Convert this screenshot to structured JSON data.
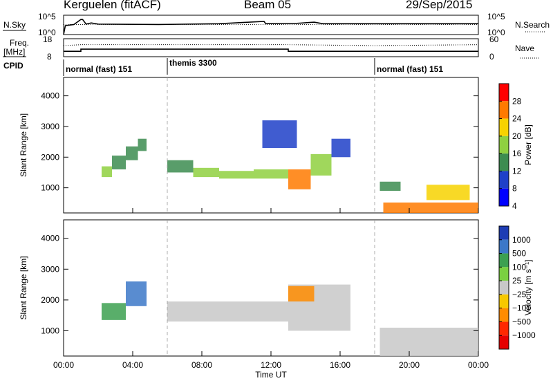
{
  "chart_data": [
    {
      "type": "line",
      "header": {
        "station": "Kerguelen (fitACF)",
        "beam": "Beam 05",
        "date": "29/Sep/2015"
      },
      "left_label": "N.Sky",
      "right_label": "N.Search",
      "yticks_left": [
        "10^5",
        "10^0"
      ],
      "yticks_right": [
        "10^5",
        "10^0"
      ],
      "line_style_right": "dotted",
      "series": [
        {
          "values_x": [
            0,
            0.1,
            0.6,
            1.0,
            1.1,
            1.3,
            1.6,
            2.0,
            5.5,
            9.0,
            11.6,
            11.7,
            12.6,
            13.5,
            14.5,
            15.0,
            20.0,
            23.5,
            24.0
          ],
          "values_y": [
            0,
            2.3,
            2.6,
            3.9,
            3.9,
            2.7,
            3.0,
            2.7,
            2.6,
            2.8,
            3.4,
            2.8,
            2.9,
            2.9,
            3.2,
            2.8,
            2.8,
            2.8,
            2.8
          ]
        }
      ]
    },
    {
      "type": "line",
      "left_label": "Freq. [MHz]",
      "right_label": "Nave",
      "yticks_left": [
        "18",
        "8"
      ],
      "yticks_right": [
        "60",
        "0"
      ],
      "line_style_right": "dotted",
      "series": [
        {
          "x": [
            0,
            1.0,
            1.0,
            13.0,
            13.0,
            24.0
          ],
          "y": [
            11.0,
            11.0,
            12.2,
            12.2,
            11.0,
            11.0
          ]
        },
        {
          "x": [
            0,
            1.0,
            13.0,
            18.0,
            24.0
          ],
          "y": [
            37,
            40,
            40,
            37,
            40
          ]
        }
      ]
    },
    {
      "type": "table",
      "left_label": "CPID",
      "segments": [
        {
          "start": 0,
          "end": 6,
          "label": "normal (fast) 151"
        },
        {
          "start": 6,
          "end": 18,
          "label": "themis 3300"
        },
        {
          "start": 18,
          "end": 24,
          "label": "normal (fast) 151"
        }
      ]
    },
    {
      "type": "heatmap",
      "quantity": "power",
      "ylabel": "Slant Range [km]",
      "yticks": [
        1000,
        2000,
        3000,
        4000
      ],
      "ylim": [
        180,
        4600
      ],
      "colorbar": {
        "label": "Power [dB]",
        "ticks": [
          "28",
          "24",
          "20",
          "16",
          "12",
          "8",
          "4"
        ],
        "colors": [
          "#ff0000",
          "#ff7a00",
          "#f7d200",
          "#8fd040",
          "#3c8c50",
          "#1e40c8",
          "#0000ff"
        ]
      },
      "cells": [
        [
          2.2,
          2.8,
          1350,
          1700,
          16
        ],
        [
          2.8,
          3.6,
          1600,
          2050,
          14
        ],
        [
          3.6,
          4.3,
          1900,
          2350,
          13
        ],
        [
          4.3,
          4.8,
          2200,
          2600,
          12
        ],
        [
          6.0,
          7.5,
          1500,
          1900,
          14
        ],
        [
          7.5,
          9.0,
          1350,
          1650,
          18
        ],
        [
          9.0,
          11.0,
          1300,
          1550,
          17
        ],
        [
          11.0,
          13.0,
          1300,
          1600,
          18
        ],
        [
          13.0,
          14.3,
          950,
          1600,
          24
        ],
        [
          14.3,
          15.5,
          1400,
          2100,
          16
        ],
        [
          15.5,
          16.6,
          2000,
          2600,
          9
        ],
        [
          11.5,
          13.5,
          2300,
          3200,
          8
        ],
        [
          18.3,
          19.5,
          900,
          1200,
          12
        ],
        [
          18.5,
          24.0,
          180,
          520,
          26
        ],
        [
          21.0,
          23.5,
          600,
          1100,
          20
        ]
      ]
    },
    {
      "type": "heatmap",
      "quantity": "velocity",
      "xlabel": "Time UT",
      "ylabel": "Slant Range [km]",
      "xticks": [
        "00:00",
        "04:00",
        "08:00",
        "12:00",
        "16:00",
        "20:00",
        "00:00"
      ],
      "yticks": [
        1000,
        2000,
        3000,
        4000
      ],
      "ylim": [
        180,
        4600
      ],
      "colorbar": {
        "label": "Velocity [m s⁻¹]",
        "ticks": [
          "1000",
          "500",
          "100",
          "25",
          "−25",
          "−100",
          "−500",
          "−1000"
        ],
        "colors": [
          "#1e3cb4",
          "#3c78c8",
          "#3ca050",
          "#7ad040",
          "#c8c8c8",
          "#f7c800",
          "#ff8c00",
          "#ff2800",
          "#e60000"
        ]
      },
      "cells": [
        [
          2.2,
          3.6,
          1350,
          1900,
          250
        ],
        [
          3.6,
          4.8,
          1800,
          2600,
          600
        ],
        [
          6.0,
          13.0,
          1300,
          1950,
          0
        ],
        [
          13.0,
          16.6,
          1000,
          2500,
          0
        ],
        [
          13.0,
          14.5,
          1950,
          2450,
          -150
        ],
        [
          18.3,
          24.0,
          180,
          1100,
          0
        ]
      ]
    }
  ]
}
